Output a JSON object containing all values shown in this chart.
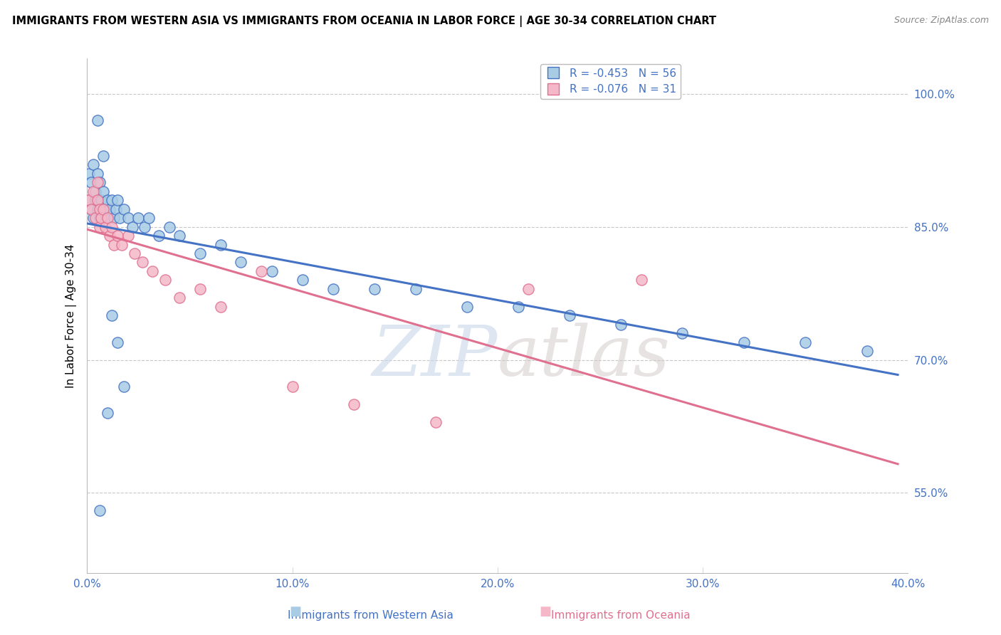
{
  "title": "IMMIGRANTS FROM WESTERN ASIA VS IMMIGRANTS FROM OCEANIA IN LABOR FORCE | AGE 30-34 CORRELATION CHART",
  "source": "Source: ZipAtlas.com",
  "xlabel_blue": "Immigrants from Western Asia",
  "xlabel_pink": "Immigrants from Oceania",
  "ylabel": "In Labor Force | Age 30-34",
  "r_blue": -0.453,
  "n_blue": 56,
  "r_pink": -0.076,
  "n_pink": 31,
  "color_blue": "#a8cce4",
  "color_pink": "#f4b8c8",
  "line_blue": "#4472c4",
  "line_pink": "#e07090",
  "watermark_color": "#d0dce8",
  "xlim": [
    0.0,
    0.4
  ],
  "ylim": [
    0.46,
    1.04
  ],
  "yticks": [
    0.55,
    0.7,
    0.85,
    1.0
  ],
  "ytick_labels": [
    "55.0%",
    "70.0%",
    "85.0%",
    "100.0%"
  ],
  "xticks": [
    0.0,
    0.1,
    0.2,
    0.3,
    0.4
  ],
  "xtick_labels": [
    "0.0%",
    "10.0%",
    "20.0%",
    "30.0%",
    "40.0%"
  ],
  "blue_x": [
    0.001,
    0.001,
    0.002,
    0.002,
    0.003,
    0.003,
    0.004,
    0.004,
    0.005,
    0.005,
    0.006,
    0.006,
    0.007,
    0.007,
    0.008,
    0.009,
    0.01,
    0.01,
    0.011,
    0.012,
    0.013,
    0.014,
    0.015,
    0.016,
    0.018,
    0.02,
    0.022,
    0.025,
    0.028,
    0.03,
    0.035,
    0.04,
    0.045,
    0.055,
    0.065,
    0.075,
    0.09,
    0.105,
    0.12,
    0.14,
    0.16,
    0.185,
    0.21,
    0.235,
    0.26,
    0.29,
    0.32,
    0.35,
    0.38,
    0.005,
    0.008,
    0.012,
    0.015,
    0.018,
    0.01,
    0.006
  ],
  "blue_y": [
    0.88,
    0.91,
    0.87,
    0.9,
    0.86,
    0.92,
    0.88,
    0.89,
    0.87,
    0.91,
    0.86,
    0.9,
    0.88,
    0.86,
    0.89,
    0.87,
    0.88,
    0.86,
    0.87,
    0.88,
    0.86,
    0.87,
    0.88,
    0.86,
    0.87,
    0.86,
    0.85,
    0.86,
    0.85,
    0.86,
    0.84,
    0.85,
    0.84,
    0.82,
    0.83,
    0.81,
    0.8,
    0.79,
    0.78,
    0.78,
    0.78,
    0.76,
    0.76,
    0.75,
    0.74,
    0.73,
    0.72,
    0.72,
    0.71,
    0.97,
    0.93,
    0.75,
    0.72,
    0.67,
    0.64,
    0.53
  ],
  "pink_x": [
    0.001,
    0.002,
    0.003,
    0.004,
    0.005,
    0.005,
    0.006,
    0.006,
    0.007,
    0.008,
    0.009,
    0.01,
    0.011,
    0.012,
    0.013,
    0.015,
    0.017,
    0.02,
    0.023,
    0.027,
    0.032,
    0.038,
    0.045,
    0.055,
    0.065,
    0.085,
    0.1,
    0.13,
    0.17,
    0.215,
    0.27
  ],
  "pink_y": [
    0.88,
    0.87,
    0.89,
    0.86,
    0.88,
    0.9,
    0.85,
    0.87,
    0.86,
    0.87,
    0.85,
    0.86,
    0.84,
    0.85,
    0.83,
    0.84,
    0.83,
    0.84,
    0.82,
    0.81,
    0.8,
    0.79,
    0.77,
    0.78,
    0.76,
    0.8,
    0.67,
    0.65,
    0.63,
    0.78,
    0.79
  ]
}
